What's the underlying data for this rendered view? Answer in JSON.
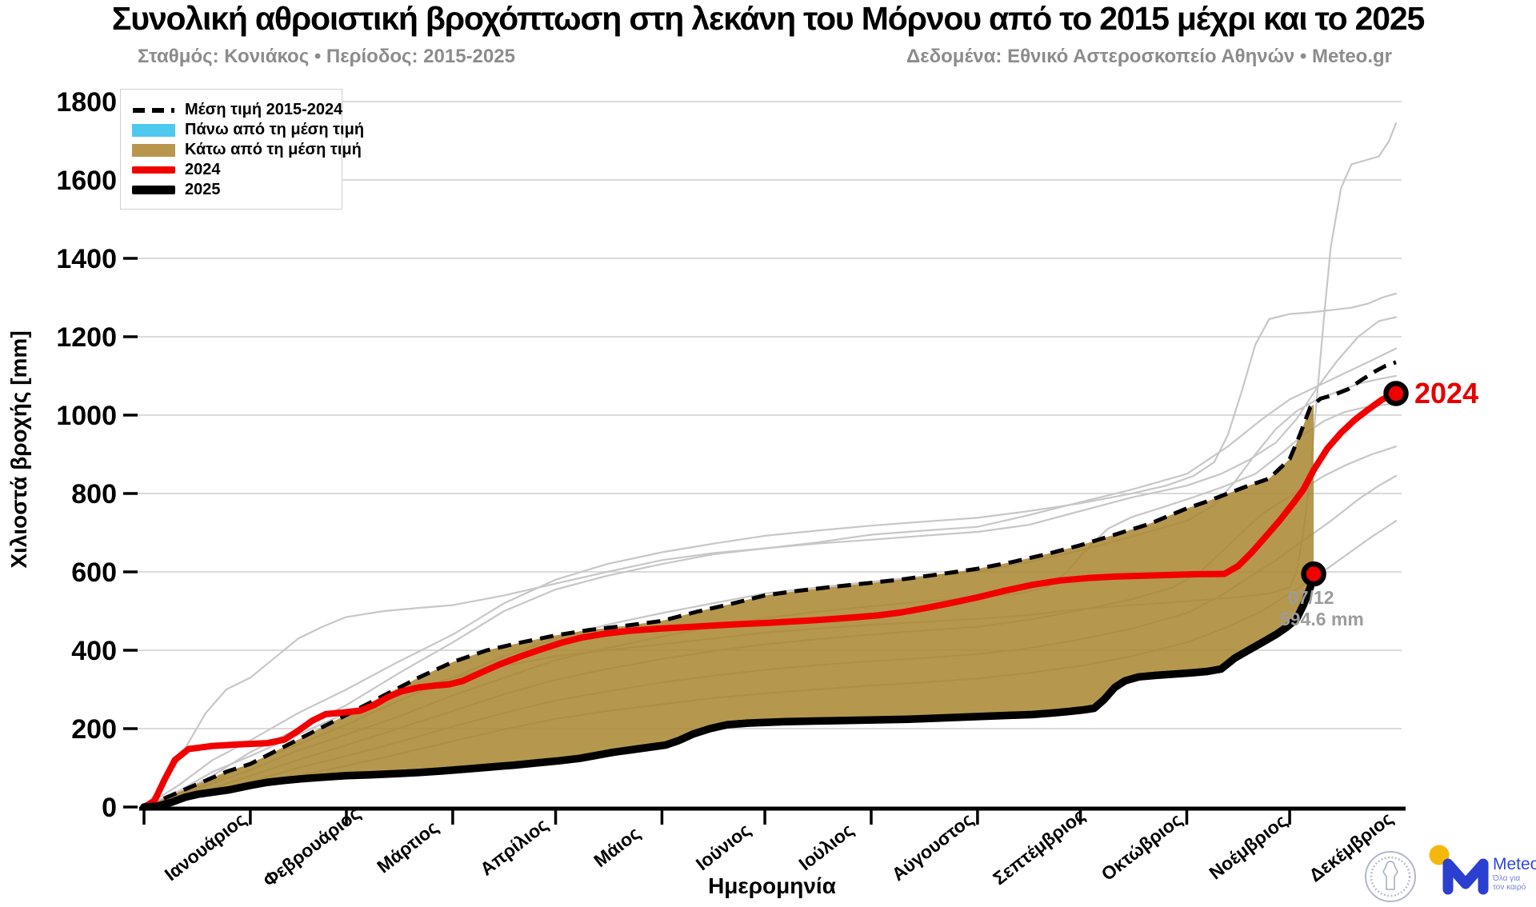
{
  "header": {
    "title": "Συνολική αθροιστική βροχόπτωση στη λεκάνη του Μόρνου από το 2015 μέχρι και το 2025",
    "subtitle_left": "Σταθμός: Κονιάκος • Περίοδος: 2015-2025",
    "subtitle_right": "Δεδομένα: Εθνικό Αστεροσκοπείο Αθηνών • Meteo.gr"
  },
  "legend": {
    "items": [
      {
        "label": "Μέση τιμή 2015-2024",
        "swatch": "dashed-line",
        "color": "#000000"
      },
      {
        "label": "Πάνω από τη μέση τιμή",
        "swatch": "rect",
        "color": "#4DC9F0"
      },
      {
        "label": "Κάτω από τη μέση τιμή",
        "swatch": "rect",
        "color": "#B8964B"
      },
      {
        "label": "2024",
        "swatch": "line",
        "color": "#F20000"
      },
      {
        "label": "2025",
        "swatch": "line",
        "color": "#000000"
      }
    ]
  },
  "annotations": {
    "label_2024": "2024",
    "endpoint_date": "07/12",
    "endpoint_value": "594.6 mm"
  },
  "logos": {
    "meteo_text": "Meteo",
    "meteo_tagline_line1": "Όλα για",
    "meteo_tagline_line2": "τον καιρό"
  },
  "colors": {
    "above_mean": "#4DC9F0",
    "below_mean_fill": "#A8862F",
    "red_2024": "#F20000",
    "black_2025": "#000000",
    "year_gray": "#C7C7C7",
    "grid": "#CDCDCD",
    "subtitle_gray": "#8C8C8C",
    "annotation_gray": "#9C9C9C",
    "meteo_blue": "#2B3FD1",
    "meteo_yellow": "#F5B80A"
  },
  "chart_data": {
    "type": "line",
    "title": "Συνολική αθροιστική βροχόπτωση στη λεκάνη του Μόρνου από το 2015 μέχρι και το 2025",
    "xlabel": "Ημερομηνία",
    "ylabel": "Χιλιοστά βροχής [mm]",
    "x_unit": "day_of_year",
    "ylim": [
      0,
      1800
    ],
    "grid": true,
    "legend_position": "upper-left",
    "y_axis": {
      "ticks": [
        0,
        200,
        400,
        600,
        800,
        1000,
        1200,
        1400,
        1600,
        1800
      ]
    },
    "x_axis": {
      "months": [
        {
          "label": "Ιανουάριος",
          "start_day": 0
        },
        {
          "label": "Φεβρουάριος",
          "start_day": 31
        },
        {
          "label": "Μάρτιος",
          "start_day": 59
        },
        {
          "label": "Απρίλιος",
          "start_day": 90
        },
        {
          "label": "Μάιος",
          "start_day": 120
        },
        {
          "label": "Ιούνιος",
          "start_day": 151
        },
        {
          "label": "Ιούλιος",
          "start_day": 181
        },
        {
          "label": "Αύγουστος",
          "start_day": 212
        },
        {
          "label": "Σεπτέμβριος",
          "start_day": 243
        },
        {
          "label": "Οκτώβριος",
          "start_day": 273
        },
        {
          "label": "Νοέμβριος",
          "start_day": 304
        },
        {
          "label": "Δεκέμβριος",
          "start_day": 334
        }
      ]
    },
    "fill_between": {
      "upper": "mean",
      "lower": "2025",
      "color": "#A8862F",
      "opacity": 0.85,
      "end_day": 341
    },
    "markers": [
      {
        "series": "2024",
        "day": 365,
        "value": 1055
      },
      {
        "series": "2025",
        "day": 341,
        "value": 594.6
      }
    ],
    "series": [
      {
        "name": "year-line-1",
        "role": "year",
        "color": "#C7C7C7",
        "days": [
          0,
          10,
          20,
          31,
          45,
          59,
          74,
          90,
          105,
          120,
          135,
          151,
          166,
          181,
          196,
          212,
          227,
          243,
          258,
          273,
          288,
          304,
          314,
          322,
          328,
          334,
          336,
          338,
          340,
          342,
          344,
          346,
          349,
          352,
          356,
          360,
          363,
          365
        ],
        "values": [
          0,
          40,
          90,
          130,
          185,
          240,
          290,
          330,
          360,
          385,
          400,
          415,
          430,
          445,
          455,
          465,
          472,
          480,
          490,
          505,
          515,
          525,
          532,
          538,
          545,
          560,
          600,
          700,
          850,
          1050,
          1250,
          1430,
          1580,
          1640,
          1650,
          1660,
          1700,
          1745
        ]
      },
      {
        "name": "year-line-2",
        "role": "year",
        "color": "#C7C7C7",
        "days": [
          0,
          10,
          20,
          31,
          45,
          59,
          74,
          90,
          105,
          120,
          135,
          151,
          166,
          181,
          196,
          212,
          227,
          243,
          258,
          273,
          288,
          298,
          306,
          312,
          316,
          320,
          324,
          328,
          334,
          340,
          346,
          352,
          357,
          361,
          365
        ],
        "values": [
          0,
          55,
          120,
          170,
          240,
          300,
          370,
          440,
          520,
          580,
          620,
          650,
          672,
          692,
          705,
          718,
          728,
          738,
          755,
          775,
          800,
          820,
          845,
          880,
          950,
          1060,
          1180,
          1245,
          1258,
          1262,
          1268,
          1274,
          1285,
          1300,
          1310
        ]
      },
      {
        "name": "year-line-3",
        "role": "year",
        "color": "#C7C7C7",
        "days": [
          0,
          6,
          12,
          18,
          24,
          31,
          38,
          45,
          52,
          59,
          70,
          80,
          90,
          105,
          120,
          135,
          151,
          166,
          181,
          196,
          212,
          227,
          243,
          258,
          273,
          288,
          304,
          314,
          322,
          330,
          336,
          342,
          348,
          354,
          360,
          365
        ],
        "values": [
          0,
          60,
          150,
          240,
          300,
          330,
          380,
          430,
          460,
          485,
          500,
          508,
          515,
          540,
          570,
          600,
          630,
          648,
          660,
          672,
          682,
          692,
          702,
          720,
          755,
          790,
          820,
          850,
          885,
          930,
          990,
          1070,
          1140,
          1200,
          1240,
          1250
        ]
      },
      {
        "name": "year-line-4",
        "role": "year",
        "color": "#C7C7C7",
        "days": [
          0,
          10,
          20,
          31,
          45,
          59,
          74,
          90,
          105,
          120,
          135,
          151,
          166,
          181,
          196,
          212,
          227,
          243,
          258,
          273,
          288,
          304,
          316,
          326,
          334,
          340,
          346,
          352,
          358,
          365
        ],
        "values": [
          0,
          35,
          80,
          140,
          200,
          260,
          340,
          420,
          500,
          555,
          590,
          620,
          645,
          660,
          675,
          695,
          705,
          715,
          745,
          778,
          810,
          850,
          920,
          990,
          1040,
          1065,
          1090,
          1115,
          1140,
          1170
        ]
      },
      {
        "name": "year-line-5",
        "role": "year",
        "color": "#C7C7C7",
        "days": [
          0,
          10,
          20,
          31,
          45,
          59,
          74,
          90,
          105,
          120,
          135,
          151,
          166,
          181,
          196,
          212,
          227,
          243,
          258,
          273,
          288,
          304,
          312,
          318,
          324,
          330,
          336,
          342,
          348,
          354,
          360,
          365
        ],
        "values": [
          0,
          30,
          65,
          110,
          160,
          210,
          270,
          330,
          385,
          430,
          465,
          495,
          520,
          545,
          560,
          575,
          588,
          600,
          625,
          655,
          690,
          730,
          770,
          830,
          900,
          965,
          1010,
          1040,
          1060,
          1080,
          1092,
          1100
        ]
      },
      {
        "name": "year-line-6",
        "role": "year",
        "color": "#C7C7C7",
        "days": [
          0,
          10,
          20,
          31,
          45,
          59,
          74,
          90,
          105,
          120,
          135,
          151,
          166,
          181,
          196,
          212,
          227,
          243,
          255,
          263,
          269,
          275,
          281,
          288,
          296,
          304,
          314,
          324,
          332,
          338,
          344,
          350,
          356,
          361,
          365
        ],
        "values": [
          0,
          28,
          60,
          95,
          145,
          185,
          230,
          285,
          330,
          375,
          405,
          435,
          460,
          482,
          498,
          512,
          524,
          535,
          545,
          560,
          600,
          660,
          710,
          740,
          762,
          785,
          815,
          850,
          905,
          950,
          985,
          1008,
          1020,
          1026,
          1030
        ]
      },
      {
        "name": "year-line-7",
        "role": "year",
        "color": "#C7C7C7",
        "days": [
          0,
          10,
          20,
          31,
          45,
          59,
          74,
          90,
          105,
          120,
          135,
          151,
          166,
          181,
          196,
          212,
          227,
          243,
          258,
          273,
          288,
          300,
          308,
          314,
          320,
          326,
          332,
          338,
          344,
          351,
          358,
          365
        ],
        "values": [
          0,
          22,
          48,
          80,
          120,
          158,
          200,
          245,
          288,
          325,
          352,
          378,
          398,
          415,
          428,
          440,
          450,
          460,
          478,
          502,
          530,
          560,
          600,
          650,
          700,
          748,
          782,
          812,
          845,
          875,
          900,
          920
        ]
      },
      {
        "name": "year-line-8",
        "role": "year",
        "color": "#C7C7C7",
        "days": [
          0,
          10,
          20,
          31,
          45,
          59,
          74,
          90,
          105,
          120,
          135,
          151,
          166,
          181,
          196,
          212,
          227,
          243,
          258,
          273,
          288,
          304,
          314,
          322,
          330,
          338,
          346,
          354,
          360,
          365
        ],
        "values": [
          0,
          18,
          40,
          65,
          100,
          130,
          165,
          205,
          240,
          272,
          295,
          318,
          335,
          350,
          362,
          372,
          380,
          390,
          405,
          428,
          455,
          495,
          540,
          585,
          630,
          680,
          730,
          785,
          820,
          845
        ]
      },
      {
        "name": "year-line-9",
        "role": "year",
        "color": "#C7C7C7",
        "days": [
          0,
          10,
          20,
          31,
          45,
          59,
          74,
          90,
          105,
          120,
          135,
          151,
          166,
          181,
          196,
          212,
          227,
          243,
          258,
          273,
          288,
          304,
          316,
          326,
          334,
          342,
          350,
          358,
          365
        ],
        "values": [
          0,
          15,
          32,
          52,
          80,
          105,
          135,
          168,
          198,
          225,
          245,
          262,
          278,
          290,
          300,
          310,
          318,
          328,
          342,
          360,
          385,
          420,
          460,
          500,
          545,
          590,
          640,
          690,
          730
        ]
      },
      {
        "name": "Μέση τιμή 2015-2024",
        "role": "mean",
        "color": "#000000",
        "style": "dashed",
        "days": [
          0,
          8,
          16,
          24,
          31,
          40,
          50,
          59,
          70,
          80,
          90,
          100,
          110,
          120,
          130,
          140,
          151,
          161,
          171,
          181,
          191,
          201,
          212,
          222,
          232,
          243,
          253,
          263,
          273,
          283,
          293,
          304,
          310,
          316,
          322,
          328,
          334,
          337,
          340,
          343,
          347,
          351,
          355,
          359,
          362,
          365
        ],
        "values": [
          0,
          30,
          60,
          90,
          110,
          150,
          195,
          235,
          285,
          330,
          370,
          400,
          420,
          438,
          452,
          462,
          475,
          498,
          518,
          540,
          552,
          562,
          572,
          582,
          594,
          608,
          625,
          645,
          668,
          695,
          722,
          762,
          780,
          800,
          820,
          838,
          888,
          950,
          1020,
          1042,
          1052,
          1066,
          1090,
          1112,
          1126,
          1135
        ]
      },
      {
        "name": "2024",
        "role": "2024",
        "color": "#F20000",
        "days": [
          0,
          3,
          6,
          9,
          13,
          20,
          28,
          36,
          41,
          45,
          49,
          53,
          58,
          63,
          67,
          71,
          75,
          80,
          85,
          89,
          93,
          98,
          104,
          110,
          116,
          122,
          128,
          135,
          142,
          150,
          158,
          166,
          174,
          182,
          190,
          198,
          206,
          214,
          221,
          228,
          235,
          243,
          251,
          259,
          267,
          275,
          283,
          291,
          299,
          307,
          315,
          319,
          323,
          327,
          331,
          335,
          338,
          341,
          345,
          349,
          353,
          357,
          361,
          365
        ],
        "values": [
          0,
          15,
          70,
          120,
          148,
          156,
          160,
          163,
          172,
          195,
          220,
          237,
          241,
          246,
          260,
          280,
          295,
          305,
          310,
          313,
          322,
          342,
          365,
          385,
          403,
          420,
          433,
          443,
          450,
          455,
          459,
          463,
          467,
          470,
          474,
          478,
          483,
          489,
          497,
          508,
          520,
          535,
          552,
          567,
          578,
          584,
          588,
          590,
          592,
          594,
          595,
          615,
          650,
          690,
          730,
          775,
          810,
          860,
          915,
          955,
          988,
          1015,
          1040,
          1055
        ]
      },
      {
        "name": "2025",
        "role": "2025",
        "color": "#000000",
        "days": [
          0,
          4,
          8,
          12,
          16,
          20,
          25,
          31,
          36,
          41,
          46,
          52,
          59,
          66,
          73,
          80,
          87,
          94,
          101,
          108,
          115,
          121,
          127,
          132,
          137,
          142,
          147,
          152,
          156,
          160,
          165,
          170,
          176,
          181,
          187,
          193,
          199,
          205,
          211,
          217,
          223,
          229,
          235,
          241,
          247,
          253,
          259,
          265,
          270,
          274,
          277,
          280,
          283,
          286,
          290,
          295,
          300,
          305,
          310,
          314,
          318,
          322,
          326,
          330,
          333,
          336,
          338,
          340,
          341
        ],
        "values": [
          0,
          2,
          12,
          25,
          33,
          38,
          44,
          55,
          63,
          68,
          72,
          76,
          80,
          82,
          85,
          88,
          92,
          97,
          102,
          107,
          113,
          118,
          124,
          132,
          140,
          146,
          152,
          158,
          170,
          186,
          200,
          210,
          214,
          216,
          218,
          219,
          220,
          221,
          222,
          223,
          224,
          226,
          228,
          230,
          232,
          234,
          236,
          240,
          244,
          248,
          252,
          275,
          305,
          322,
          332,
          336,
          339,
          342,
          346,
          352,
          380,
          400,
          420,
          440,
          458,
          480,
          515,
          560,
          594.6
        ]
      }
    ]
  }
}
